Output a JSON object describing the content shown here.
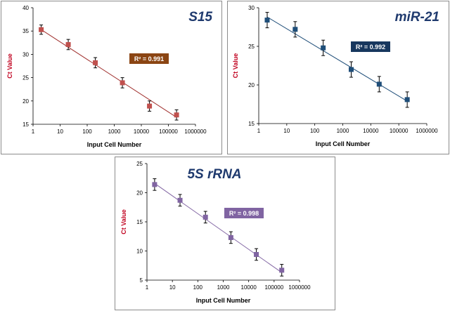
{
  "chart_data": [
    {
      "type": "scatter",
      "title": "S15",
      "xlabel": "Input Cell Number",
      "ylabel": "Ct Value",
      "xscale": "log",
      "xlim": [
        1,
        1000000
      ],
      "ylim": [
        15,
        40
      ],
      "xticks": [
        "1",
        "10",
        "100",
        "1000",
        "10000",
        "100000",
        "1000000"
      ],
      "yticks": [
        "15",
        "20",
        "25",
        "30",
        "35",
        "40"
      ],
      "color": "#c0504d",
      "line_color": "#a0302e",
      "annotation": "R² = 0.991",
      "annotation_color": "#8b4513",
      "x": [
        2,
        20,
        200,
        2000,
        20000,
        200000
      ],
      "y": [
        35.3,
        32.1,
        28.2,
        23.9,
        18.9,
        17.0
      ],
      "error": [
        1.0,
        1.1,
        1.1,
        1.1,
        1.1,
        1.1
      ],
      "trend": [
        35.3,
        16.5
      ]
    },
    {
      "type": "scatter",
      "title": "miR-21",
      "xlabel": "Input Cell Number",
      "ylabel": "Ct Value",
      "xscale": "log",
      "xlim": [
        1,
        1000000
      ],
      "ylim": [
        15,
        30
      ],
      "xticks": [
        "1",
        "10",
        "100",
        "1000",
        "10000",
        "100000",
        "1000000"
      ],
      "yticks": [
        "15",
        "20",
        "25",
        "30"
      ],
      "color": "#1f4e79",
      "line_color": "#1f4e79",
      "annotation": "R² = 0.992",
      "annotation_color": "#17375e",
      "x": [
        2,
        20,
        200,
        2000,
        20000,
        200000
      ],
      "y": [
        28.4,
        27.2,
        24.8,
        22.0,
        20.1,
        18.1
      ],
      "error": [
        1.0,
        1.0,
        1.0,
        1.0,
        1.0,
        1.0
      ],
      "trend": [
        28.8,
        17.9
      ]
    },
    {
      "type": "scatter",
      "title": "5S rRNA",
      "xlabel": "Input Cell Number",
      "ylabel": "Ct Value",
      "xscale": "log",
      "xlim": [
        1,
        1000000
      ],
      "ylim": [
        5,
        25
      ],
      "xticks": [
        "1",
        "10",
        "100",
        "1000",
        "10000",
        "100000",
        "1000000"
      ],
      "yticks": [
        "5",
        "10",
        "15",
        "20",
        "25"
      ],
      "color": "#8064a2",
      "line_color": "#8064a2",
      "annotation": "R² = 0.998",
      "annotation_color": "#8064a2",
      "x": [
        2,
        20,
        200,
        2000,
        20000,
        200000
      ],
      "y": [
        21.4,
        18.7,
        15.8,
        12.3,
        9.4,
        6.7
      ],
      "error": [
        1.0,
        1.0,
        1.0,
        1.0,
        1.0,
        1.0
      ],
      "trend": [
        21.6,
        6.3
      ]
    }
  ]
}
